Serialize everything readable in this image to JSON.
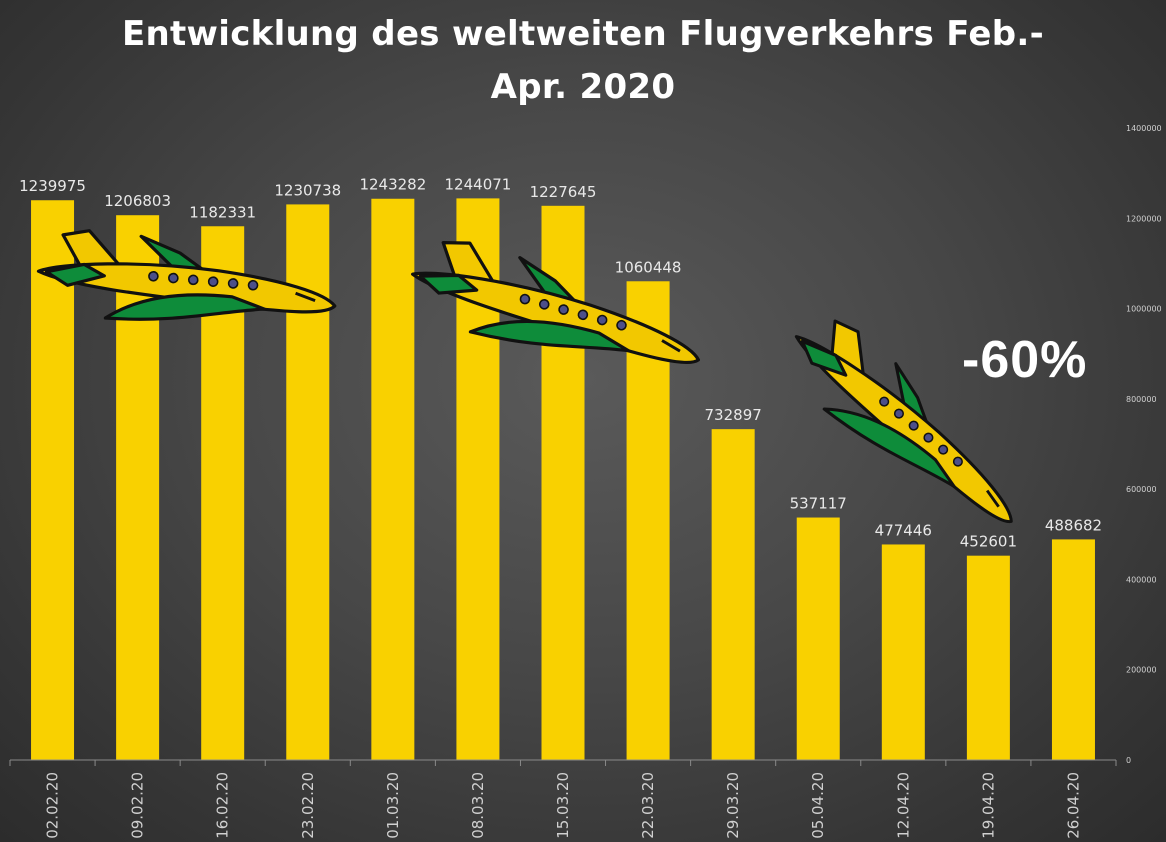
{
  "title_line1": "Entwicklung des weltweiten Flugverkehrs Feb.-",
  "title_line2": "Apr. 2020",
  "annotation": "-60%",
  "colors": {
    "bar": "#F9D100",
    "plane_body": "#F2C800",
    "plane_wing": "#0E8C3A",
    "outline": "#111111",
    "text": "#FFFFFF",
    "data_label": "#E8E8E8",
    "axis_text": "#D0D0D0"
  },
  "icons": [
    "airplane-icon",
    "airplane-icon",
    "airplane-icon"
  ],
  "chart_data": {
    "type": "bar",
    "title": "Entwicklung des weltweiten Flugverkehrs Feb.-Apr. 2020",
    "categories": [
      "02.02.20",
      "09.02.20",
      "16.02.20",
      "23.02.20",
      "01.03.20",
      "08.03.20",
      "15.03.20",
      "22.03.20",
      "29.03.20",
      "05.04.20",
      "12.04.20",
      "19.04.20",
      "26.04.20"
    ],
    "values": [
      1239975,
      1206803,
      1182331,
      1230738,
      1243282,
      1244071,
      1227645,
      1060448,
      732897,
      537117,
      477446,
      452601,
      488682
    ],
    "ylim": [
      0,
      1400000
    ],
    "yticks": [
      0,
      200000,
      400000,
      600000,
      800000,
      1000000,
      1200000,
      1400000
    ],
    "y_axis_side": "right",
    "data_labels": true,
    "grid": false,
    "legend": "none",
    "annotation": "-60%"
  }
}
